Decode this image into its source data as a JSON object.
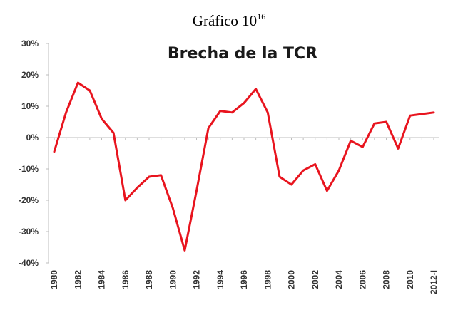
{
  "caption": {
    "text": "Gráfico 10",
    "footnote": "16"
  },
  "chart_data": {
    "type": "line",
    "title": "Brecha de la TCR",
    "xlabel": "",
    "ylabel": "",
    "ylim": [
      -40,
      30
    ],
    "yticks": [
      "30%",
      "20%",
      "10%",
      "0%",
      "-10%",
      "-20%",
      "-30%",
      "-40%"
    ],
    "ytick_values": [
      30,
      20,
      10,
      0,
      -10,
      -20,
      -30,
      -40
    ],
    "x": [
      "1980",
      "1981",
      "1982",
      "1983",
      "1984",
      "1985",
      "1986",
      "1987",
      "1988",
      "1989",
      "1990",
      "1991",
      "1992",
      "1993",
      "1994",
      "1995",
      "1996",
      "1997",
      "1998",
      "1999",
      "2000",
      "2001",
      "2002",
      "2003",
      "2004",
      "2005",
      "2006",
      "2007",
      "2008",
      "2009",
      "2010",
      "2011",
      "2012-I"
    ],
    "xtick_labels": [
      "1980",
      "1982",
      "1984",
      "1986",
      "1988",
      "1990",
      "1992",
      "1994",
      "1996",
      "1998",
      "2000",
      "2002",
      "2004",
      "2006",
      "2008",
      "2010",
      "2012-I"
    ],
    "series": [
      {
        "color": "#e8141e",
        "values": [
          -4.5,
          8,
          17.5,
          15,
          6,
          1.5,
          -20,
          -16,
          -12.5,
          -12,
          -22.5,
          -36,
          -17,
          3,
          8.5,
          8,
          11,
          15.5,
          8,
          -12.5,
          -15,
          -10.5,
          -8.5,
          -17,
          -10.5,
          -1,
          -3,
          4.5,
          5,
          -3.5,
          7,
          7.5,
          8
        ]
      }
    ],
    "grid": false,
    "legend": "none"
  }
}
